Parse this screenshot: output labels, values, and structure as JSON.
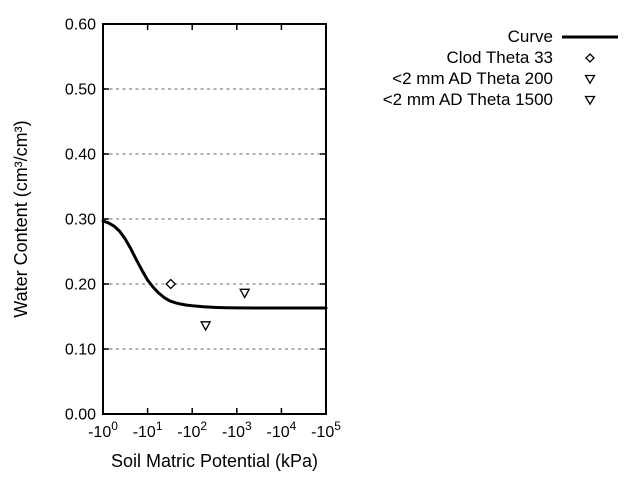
{
  "chart_data": {
    "type": "line",
    "title": "",
    "xlabel": "Soil Matric Potential (kPa)",
    "ylabel": "Water Content (cm³/cm³)",
    "x_axis": {
      "scale": "negative-log10",
      "range_exp": [
        0,
        5
      ],
      "ticks": [
        {
          "base": "-10",
          "exp": "0"
        },
        {
          "base": "-10",
          "exp": "1"
        },
        {
          "base": "-10",
          "exp": "2"
        },
        {
          "base": "-10",
          "exp": "3"
        },
        {
          "base": "-10",
          "exp": "4"
        },
        {
          "base": "-10",
          "exp": "5"
        }
      ]
    },
    "y_axis": {
      "min": 0.0,
      "max": 0.6,
      "tick_step": 0.1,
      "ticks": [
        "0.00",
        "0.10",
        "0.20",
        "0.30",
        "0.40",
        "0.50",
        "0.60"
      ],
      "grid_values": [
        0.1,
        0.2,
        0.3,
        0.4,
        0.5
      ]
    },
    "grid": {
      "horizontal": true,
      "vertical": false,
      "style": "dashed",
      "color": "#999999"
    },
    "legend_position": "outside-top-right",
    "series": [
      {
        "name": "Curve",
        "type": "line",
        "color": "#000000",
        "line_width": 3,
        "points_log10h_theta": [
          [
            0.0,
            0.297
          ],
          [
            0.125,
            0.294
          ],
          [
            0.25,
            0.289
          ],
          [
            0.375,
            0.281
          ],
          [
            0.5,
            0.269
          ],
          [
            0.625,
            0.254
          ],
          [
            0.75,
            0.237
          ],
          [
            0.875,
            0.221
          ],
          [
            1.0,
            0.206
          ],
          [
            1.125,
            0.195
          ],
          [
            1.25,
            0.186
          ],
          [
            1.375,
            0.179
          ],
          [
            1.5,
            0.174
          ],
          [
            1.625,
            0.171
          ],
          [
            1.75,
            0.169
          ],
          [
            1.875,
            0.1675
          ],
          [
            2.0,
            0.1665
          ],
          [
            2.25,
            0.165
          ],
          [
            2.5,
            0.164
          ],
          [
            2.75,
            0.1635
          ],
          [
            3.0,
            0.1633
          ],
          [
            3.5,
            0.163
          ],
          [
            4.0,
            0.163
          ],
          [
            4.5,
            0.163
          ],
          [
            5.0,
            0.163
          ]
        ]
      },
      {
        "name": "Clod Theta 33",
        "type": "scatter",
        "marker": "diamond-open",
        "color": "#000000",
        "points_kpa_theta": [
          [
            -33,
            0.2
          ]
        ]
      },
      {
        "name": "<2 mm AD Theta 200",
        "type": "scatter",
        "marker": "triangle-down-open",
        "color": "#000000",
        "points_kpa_theta": [
          [
            -200,
            0.136
          ]
        ]
      },
      {
        "name": "<2 mm AD Theta 1500",
        "type": "scatter",
        "marker": "triangle-down-open",
        "color": "#000000",
        "points_kpa_theta": [
          [
            -1500,
            0.186
          ]
        ]
      }
    ]
  },
  "colors": {
    "foreground": "#000000",
    "background": "#ffffff",
    "grid": "#999999"
  }
}
